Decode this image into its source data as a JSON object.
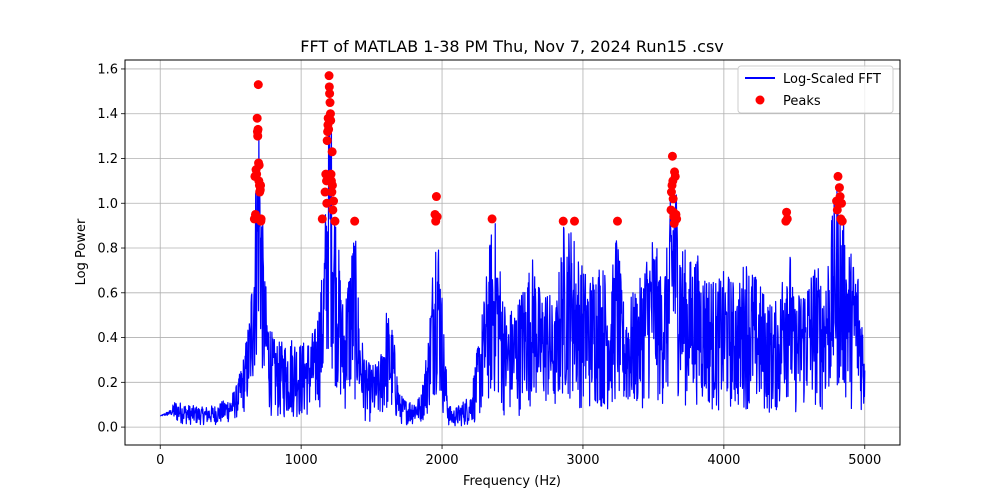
{
  "chart_data": {
    "type": "line",
    "title": "FFT of MATLAB 1-38 PM Thu, Nov 7, 2024 Run15 .csv",
    "xlabel": "Frequency (Hz)",
    "ylabel": "Log Power",
    "xlim": [
      -250,
      5250
    ],
    "ylim": [
      -0.08,
      1.64
    ],
    "xticks": [
      0,
      1000,
      2000,
      3000,
      4000,
      5000
    ],
    "yticks": [
      0.0,
      0.2,
      0.4,
      0.6,
      0.8,
      1.0,
      1.2,
      1.4,
      1.6
    ],
    "grid": true,
    "legend_position": "top-right",
    "colors": {
      "line": "#0000ff",
      "peaks": "#ff0000"
    },
    "series": [
      {
        "name": "Log-Scaled FFT",
        "type": "line",
        "envelope": {
          "x": [
            0,
            80,
            100,
            200,
            300,
            400,
            500,
            550,
            600,
            640,
            660,
            680,
            700,
            720,
            740,
            770,
            800,
            850,
            900,
            950,
            1000,
            1050,
            1100,
            1150,
            1180,
            1200,
            1220,
            1250,
            1280,
            1300,
            1340,
            1380,
            1420,
            1460,
            1500,
            1560,
            1600,
            1650,
            1700,
            1750,
            1800,
            1850,
            1900,
            1930,
            1960,
            1990,
            2020,
            2050,
            2080,
            2120,
            2200,
            2250,
            2300,
            2350,
            2380,
            2420,
            2460,
            2500,
            2550,
            2600,
            2650,
            2700,
            2750,
            2800,
            2860,
            2900,
            2940,
            2980,
            3050,
            3100,
            3150,
            3200,
            3240,
            3280,
            3350,
            3400,
            3450,
            3500,
            3550,
            3600,
            3640,
            3660,
            3700,
            3750,
            3800,
            3850,
            3900,
            3950,
            4000,
            4050,
            4100,
            4150,
            4200,
            4250,
            4300,
            4350,
            4400,
            4440,
            4470,
            4500,
            4550,
            4600,
            4650,
            4700,
            4750,
            4800,
            4830,
            4860,
            4900,
            4950,
            5000
          ],
          "upper": [
            0.05,
            0.08,
            0.12,
            0.1,
            0.09,
            0.1,
            0.14,
            0.2,
            0.35,
            0.55,
            0.88,
            1.15,
            1.53,
            1.05,
            0.7,
            0.52,
            0.4,
            0.38,
            0.4,
            0.42,
            0.38,
            0.4,
            0.45,
            0.7,
            1.1,
            1.57,
            1.3,
            0.95,
            0.7,
            0.55,
            0.75,
            0.92,
            0.45,
            0.3,
            0.28,
            0.3,
            0.55,
            0.45,
            0.15,
            0.12,
            0.13,
            0.14,
            0.4,
            0.7,
            1.03,
            0.75,
            0.35,
            0.1,
            0.08,
            0.1,
            0.15,
            0.35,
            0.6,
            0.9,
            0.93,
            0.7,
            0.5,
            0.55,
            0.6,
            0.7,
            0.78,
            0.6,
            0.65,
            0.5,
            0.92,
            0.92,
            0.88,
            0.75,
            0.68,
            0.78,
            0.72,
            0.65,
            0.92,
            0.58,
            0.6,
            0.65,
            0.8,
            0.9,
            0.7,
            0.82,
            1.21,
            1.14,
            0.85,
            0.75,
            0.8,
            0.72,
            0.7,
            0.65,
            0.7,
            0.68,
            0.62,
            0.78,
            0.72,
            0.65,
            0.6,
            0.55,
            0.6,
            0.96,
            0.8,
            0.55,
            0.65,
            0.7,
            0.75,
            0.68,
            0.85,
            1.12,
            1.0,
            0.9,
            0.8,
            0.75,
            0.4
          ],
          "lower": [
            0.05,
            0.05,
            0.02,
            0.01,
            0.01,
            0.01,
            0.02,
            0.04,
            0.06,
            0.1,
            0.15,
            0.25,
            0.35,
            0.25,
            0.1,
            0.06,
            0.04,
            0.03,
            0.03,
            0.04,
            0.03,
            0.04,
            0.05,
            0.1,
            0.2,
            0.35,
            0.25,
            0.15,
            0.08,
            0.05,
            0.08,
            0.1,
            0.05,
            0.02,
            0.02,
            0.02,
            0.05,
            0.03,
            0.01,
            0.01,
            0.01,
            0.02,
            0.05,
            0.1,
            0.15,
            0.08,
            0.02,
            0.0,
            0.0,
            0.0,
            0.01,
            0.02,
            0.05,
            0.1,
            0.12,
            0.06,
            0.03,
            0.04,
            0.05,
            0.08,
            0.1,
            0.06,
            0.08,
            0.05,
            0.12,
            0.12,
            0.1,
            0.08,
            0.06,
            0.08,
            0.07,
            0.06,
            0.1,
            0.05,
            0.06,
            0.07,
            0.1,
            0.12,
            0.08,
            0.1,
            0.2,
            0.15,
            0.1,
            0.08,
            0.1,
            0.08,
            0.07,
            0.06,
            0.07,
            0.07,
            0.06,
            0.08,
            0.07,
            0.06,
            0.05,
            0.05,
            0.06,
            0.12,
            0.1,
            0.05,
            0.06,
            0.07,
            0.08,
            0.06,
            0.1,
            0.15,
            0.12,
            0.1,
            0.08,
            0.08,
            0.05
          ]
        }
      },
      {
        "name": "Peaks",
        "type": "scatter",
        "x": [
          668,
          672,
          676,
          680,
          684,
          688,
          690,
          692,
          694,
          696,
          698,
          700,
          702,
          704,
          706,
          708,
          710,
          712,
          714,
          716,
          1150,
          1170,
          1175,
          1180,
          1182,
          1185,
          1188,
          1190,
          1192,
          1195,
          1198,
          1200,
          1202,
          1205,
          1208,
          1210,
          1212,
          1215,
          1218,
          1220,
          1222,
          1225,
          1230,
          1240,
          1380,
          1950,
          1955,
          1960,
          1965,
          2355,
          2860,
          2940,
          3245,
          3625,
          3628,
          3632,
          3635,
          3638,
          3640,
          3642,
          3645,
          3648,
          3650,
          3655,
          3660,
          3665,
          4440,
          4445,
          4450,
          4800,
          4805,
          4810,
          4815,
          4820,
          4825,
          4830,
          4835,
          4840
        ],
        "y": [
          0.93,
          1.12,
          0.95,
          1.15,
          1.13,
          1.38,
          1.32,
          1.3,
          1.33,
          1.53,
          1.18,
          1.1,
          1.17,
          1.08,
          1.05,
          0.93,
          1.06,
          1.08,
          0.92,
          0.93,
          0.93,
          1.05,
          1.13,
          1.1,
          1.0,
          1.28,
          1.32,
          1.35,
          1.38,
          1.33,
          1.57,
          1.52,
          1.49,
          1.45,
          1.4,
          1.37,
          1.13,
          1.1,
          1.05,
          1.23,
          1.08,
          0.97,
          1.01,
          0.92,
          0.92,
          0.95,
          0.92,
          1.03,
          0.94,
          0.93,
          0.92,
          0.92,
          0.92,
          0.97,
          1.05,
          1.08,
          1.21,
          1.1,
          1.02,
          0.96,
          0.94,
          0.91,
          1.14,
          1.12,
          0.95,
          0.93,
          0.92,
          0.96,
          0.93,
          1.01,
          0.97,
          1.12,
          1.0,
          1.07,
          1.03,
          0.93,
          1.0,
          0.92
        ]
      }
    ],
    "legend": [
      "Log-Scaled FFT",
      "Peaks"
    ]
  }
}
